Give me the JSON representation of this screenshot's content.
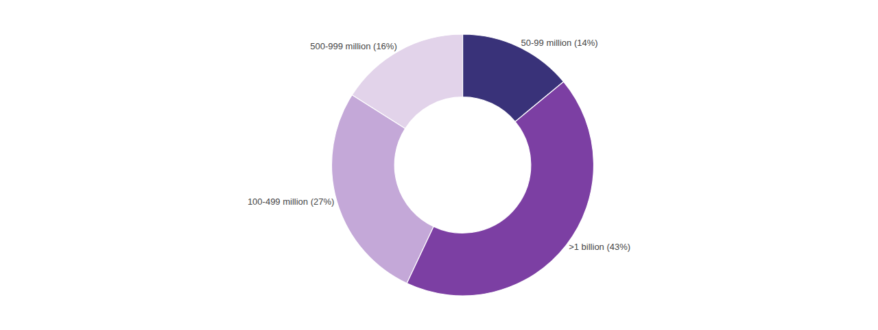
{
  "chart_data": {
    "type": "donut",
    "categories": [
      "50-99 million (14%)",
      "500-999 million (16%)",
      "100-499 million (27%)",
      ">1 billion (43%)"
    ],
    "values": [
      14,
      16,
      27,
      43
    ],
    "colors": [
      "#393279",
      "#e2d3ea",
      "#c4a8d8",
      "#7c3fa3"
    ]
  }
}
